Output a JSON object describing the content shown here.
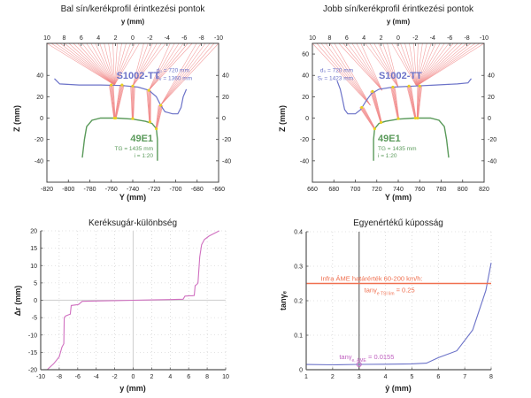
{
  "chart_data": [
    {
      "id": "left",
      "type": "line",
      "title": "Bal sín/kerékprofil érintkezési pontok",
      "xlabel": "Y (mm)",
      "xlabel_top": "y (mm)",
      "ylabel": "Z (mm)",
      "xlim": [
        -820,
        -660
      ],
      "ylim": [
        -60,
        70
      ],
      "top_xlim": [
        10,
        -10
      ],
      "x_ticks": [
        "-820",
        "-800",
        "-780",
        "-760",
        "-740",
        "-720",
        "-700",
        "-680",
        "-660"
      ],
      "x_tick_values": [
        -820,
        -800,
        -780,
        -760,
        -740,
        -720,
        -700,
        -680,
        -660
      ],
      "top_ticks": [
        "10",
        "8",
        "6",
        "4",
        "2",
        "0",
        "-2",
        "-4",
        "-6",
        "-8",
        "-10"
      ],
      "y_ticks": [
        "40",
        "20",
        "0",
        "-20",
        "-40"
      ],
      "y_tick_values": [
        40,
        20,
        0,
        -20,
        -40
      ],
      "wheel_label": "S1002-TT",
      "wheel_params": [
        "d₀ = 720 mm",
        "Aᵣ = 1360 mm"
      ],
      "rail_label": "49E1",
      "rail_params": [
        "TG = 1435 mm",
        "i = 1:20"
      ],
      "wheel_profile": [
        [
          -813,
          37
        ],
        [
          -808,
          32
        ],
        [
          -790,
          31
        ],
        [
          -770,
          31
        ],
        [
          -750,
          30.5
        ],
        [
          -735,
          29
        ],
        [
          -725,
          26
        ],
        [
          -718,
          20
        ],
        [
          -714,
          12
        ],
        [
          -710,
          6
        ],
        [
          -703,
          4
        ],
        [
          -698,
          4
        ],
        [
          -695,
          10
        ],
        [
          -693,
          20
        ],
        [
          -690,
          27
        ]
      ],
      "rail_profile": [
        [
          -787,
          -37
        ],
        [
          -785,
          -20
        ],
        [
          -783,
          -8
        ],
        [
          -778,
          -2
        ],
        [
          -770,
          0
        ],
        [
          -755,
          0
        ],
        [
          -740,
          -1
        ],
        [
          -728,
          -3
        ],
        [
          -722,
          -5
        ],
        [
          -718,
          -10
        ],
        [
          -717,
          -20
        ],
        [
          -717,
          -40
        ]
      ],
      "contact_wheel": [
        [
          -760,
          31
        ],
        [
          -750,
          31
        ],
        [
          -740,
          30
        ],
        [
          -725,
          26
        ],
        [
          -714,
          12
        ]
      ],
      "contact_rail": [
        [
          -757,
          0
        ],
        [
          -756,
          0
        ],
        [
          -740,
          -0.5
        ],
        [
          -724,
          -3.5
        ],
        [
          -718,
          -10
        ]
      ],
      "colors": {
        "wheel": "#6b72c8",
        "rail": "#5a9a5a",
        "rays": "#f08080",
        "contact": "#e8d020",
        "axis": "#333333"
      }
    },
    {
      "id": "right",
      "type": "line",
      "title": "Jobb sín/kerékprofil érintkezési pontok",
      "xlabel": "Y (mm)",
      "xlabel_top": "y (mm)",
      "ylabel": "Z (mm)",
      "xlim": [
        660,
        820
      ],
      "ylim": [
        -60,
        70
      ],
      "top_xlim": [
        10,
        -10
      ],
      "x_ticks": [
        "660",
        "680",
        "700",
        "720",
        "740",
        "760",
        "780",
        "800",
        "820"
      ],
      "x_tick_values": [
        660,
        680,
        700,
        720,
        740,
        760,
        780,
        800,
        820
      ],
      "top_ticks": [
        "10",
        "8",
        "6",
        "4",
        "2",
        "0",
        "-2",
        "-4",
        "-6",
        "-8",
        "-10"
      ],
      "y_ticks": [
        "60",
        "40",
        "20",
        "0",
        "-20",
        "-40"
      ],
      "y_tick_values": [
        60,
        40,
        20,
        0,
        -20,
        -40
      ],
      "y_ticks_right": [
        "40",
        "20",
        "0",
        "-20",
        "-40"
      ],
      "wheel_label": "S1002-TT",
      "wheel_params": [
        "d₀ = 720 mm",
        "Sᵣ = 1423 mm"
      ],
      "rail_label": "49E1",
      "rail_params": [
        "TG = 1435 mm",
        "i = 1:20"
      ],
      "wheel_profile": [
        [
          683,
          35
        ],
        [
          686,
          27
        ],
        [
          688,
          18
        ],
        [
          690,
          8
        ],
        [
          693,
          4
        ],
        [
          700,
          4
        ],
        [
          705,
          8
        ],
        [
          710,
          16
        ],
        [
          715,
          23
        ],
        [
          722,
          27
        ],
        [
          735,
          29
        ],
        [
          755,
          30
        ],
        [
          775,
          31
        ],
        [
          795,
          32
        ],
        [
          805,
          33
        ],
        [
          808,
          37
        ]
      ],
      "rail_profile": [
        [
          717,
          -40
        ],
        [
          717,
          -20
        ],
        [
          718,
          -10
        ],
        [
          722,
          -5
        ],
        [
          728,
          -3
        ],
        [
          740,
          -1
        ],
        [
          755,
          0
        ],
        [
          770,
          0
        ],
        [
          778,
          -2
        ],
        [
          783,
          -8
        ],
        [
          785,
          -20
        ],
        [
          787,
          -37
        ]
      ],
      "contact_wheel": [
        [
          706,
          10
        ],
        [
          716,
          25
        ],
        [
          735,
          29
        ],
        [
          750,
          30
        ],
        [
          760,
          30
        ]
      ],
      "contact_rail": [
        [
          718,
          -10
        ],
        [
          724,
          -4
        ],
        [
          740,
          -0.5
        ],
        [
          756,
          0
        ],
        [
          758,
          0
        ]
      ],
      "colors": {
        "wheel": "#6b72c8",
        "rail": "#5a9a5a",
        "rays": "#f08080",
        "contact": "#e8d020",
        "axis": "#333333"
      }
    },
    {
      "id": "bottom-left",
      "type": "line",
      "title": "Keréksugár-különbség",
      "xlabel": "y (mm)",
      "ylabel": "Δr (mm)",
      "xlim": [
        -10,
        10
      ],
      "ylim": [
        -20,
        20
      ],
      "grid": true,
      "x_ticks": [
        "-10",
        "-8",
        "-6",
        "-4",
        "-2",
        "0",
        "2",
        "4",
        "6",
        "8",
        "10"
      ],
      "x_tick_values": [
        -10,
        -8,
        -6,
        -4,
        -2,
        0,
        2,
        4,
        6,
        8,
        10
      ],
      "y_ticks": [
        "20",
        "15",
        "10",
        "5",
        "0",
        "-5",
        "-10",
        "-15",
        "-20"
      ],
      "y_tick_values": [
        20,
        15,
        10,
        5,
        0,
        -5,
        -10,
        -15,
        -20
      ],
      "series": [
        {
          "name": "Δr",
          "color": "#d070c0",
          "x": [
            -9.3,
            -8.6,
            -8.0,
            -7.7,
            -7.5,
            -7.45,
            -7.3,
            -7.0,
            -6.8,
            -6.7,
            -6.1,
            -5.9,
            -5.5,
            -4.0,
            -2.0,
            0.0,
            2.0,
            4.0,
            5.4,
            5.6,
            6.1,
            6.4,
            6.6,
            6.7,
            6.9,
            7.0,
            7.2,
            7.4,
            7.7,
            8.2,
            9.3
          ],
          "y": [
            -20,
            -18.3,
            -16.3,
            -13.5,
            -12.5,
            -5.0,
            -4.5,
            -4.2,
            -4.0,
            -1.5,
            -1.3,
            -1.2,
            -0.3,
            -0.2,
            -0.1,
            0.0,
            0.1,
            0.2,
            0.3,
            1.2,
            1.3,
            1.3,
            1.4,
            4.2,
            4.6,
            5.0,
            12.5,
            16.0,
            17.5,
            18.5,
            20
          ]
        }
      ]
    },
    {
      "id": "bottom-right",
      "type": "line",
      "title": "Egyenértékű kúposság",
      "xlabel": "ŷ (mm)",
      "ylabel": "tanγₑ",
      "xlim": [
        1,
        8
      ],
      "ylim": [
        0,
        0.4
      ],
      "grid": true,
      "x_ticks": [
        "1",
        "2",
        "3",
        "4",
        "5",
        "6",
        "7",
        "8"
      ],
      "x_tick_values": [
        1,
        2,
        3,
        4,
        5,
        6,
        7,
        8
      ],
      "y_ticks": [
        "0.4",
        "0.3",
        "0.2",
        "0.1",
        "0"
      ],
      "y_tick_values": [
        0.4,
        0.3,
        0.2,
        0.1,
        0
      ],
      "series": [
        {
          "name": "tanγₑ",
          "color": "#6b72c8",
          "x": [
            1,
            2,
            3,
            4,
            5,
            5.55,
            6,
            6.7,
            7.3,
            7.8,
            8
          ],
          "y": [
            0.015,
            0.014,
            0.0155,
            0.016,
            0.017,
            0.019,
            0.035,
            0.055,
            0.115,
            0.23,
            0.31
          ]
        }
      ],
      "reference_line": {
        "y": 0.25,
        "color": "#f07050",
        "label": "Infra ÁME  határérték 60-200 km/h:",
        "sublabel_main": "tanγ",
        "sublabel_sub": "e TSI lim",
        "sublabel_value": " = 0.25"
      },
      "vertical_line": {
        "x": 3,
        "color": "#888888"
      },
      "marker": {
        "x": 3,
        "y": 0.0155,
        "color": "#c060c0",
        "label_main": "tanγ",
        "label_sub": "e, ÁME",
        "label_value": " = 0.0155"
      }
    }
  ]
}
